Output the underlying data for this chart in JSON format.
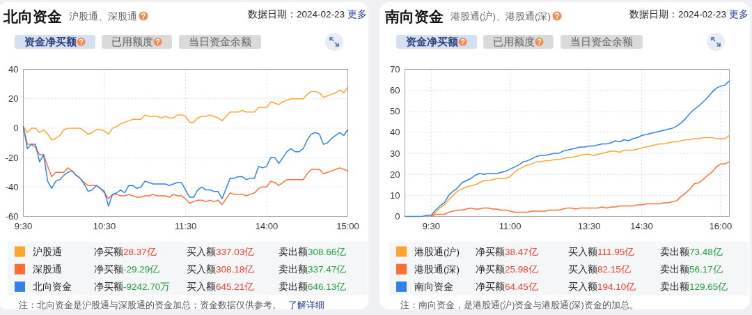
{
  "chart_data": [
    {
      "type": "line",
      "title": "北向资金",
      "subtitle": "沪股通、深股通",
      "annotations": [
        "数据日期：2024-02-23",
        "更多",
        "资金净买额",
        "已用额度",
        "当日资金余额",
        "净买额",
        "28.37亿",
        "买入额",
        "337.03亿",
        "卖出额",
        "308.66亿",
        "净买额",
        "-29.29亿",
        "买入额",
        "308.18亿",
        "卖出额",
        "337.47亿",
        "净买额",
        "-9242.70万",
        "买入额",
        "645.21亿",
        "卖出额",
        "646.13亿",
        "注：北向资金是沪股通与深股通的资金加总；资金数据仅供参考。",
        "了解详细"
      ],
      "categories": [
        "9:30",
        null,
        null,
        null,
        null,
        null,
        null,
        null,
        null,
        null,
        null,
        null,
        null,
        null,
        null,
        null,
        null,
        null,
        null,
        null,
        "10:30",
        null,
        null,
        null,
        null,
        null,
        null,
        null,
        null,
        null,
        null,
        null,
        null,
        null,
        null,
        null,
        null,
        null,
        null,
        null,
        "11:30",
        null,
        null,
        null,
        null,
        null,
        null,
        null,
        null,
        null,
        null,
        null,
        null,
        null,
        null,
        null,
        null,
        null,
        null,
        null,
        "14:00",
        null,
        null,
        null,
        null,
        null,
        null,
        null,
        null,
        null,
        null,
        null,
        null,
        null,
        null,
        null,
        null,
        null,
        null,
        null,
        "15:00"
      ],
      "ylim": [
        -60,
        40
      ],
      "yticks": [
        -60,
        -40,
        -20,
        0,
        20,
        40
      ],
      "grid": true,
      "legend": "bottom",
      "series": [
        {
          "name": "沪股通",
          "color": "#ffa52e",
          "values": [
            1,
            -3,
            0,
            0,
            -3,
            -1,
            -4,
            -8,
            -7,
            -5,
            -1,
            0,
            0,
            0,
            0,
            -2,
            -4,
            -3,
            -1,
            -1,
            -2,
            -4,
            0,
            1,
            3,
            4,
            5,
            6,
            6,
            6,
            9,
            8,
            8,
            8,
            7,
            8,
            7,
            7,
            9,
            9,
            8,
            4,
            4,
            7,
            8,
            8,
            9,
            8,
            7,
            5,
            8,
            11,
            11,
            11,
            12,
            11,
            11,
            11,
            14,
            14,
            14,
            18,
            17,
            16,
            18,
            19,
            20,
            20,
            20,
            20,
            23,
            25,
            25,
            24,
            21,
            22,
            23,
            24,
            26,
            24,
            28
          ]
        },
        {
          "name": "深股通",
          "color": "#ff6f33",
          "values": [
            1,
            -11,
            -11,
            -13,
            -18,
            -18,
            -26,
            -33,
            -30,
            -30,
            -30,
            -27,
            -29,
            -32,
            -34,
            -37,
            -39,
            -39,
            -39,
            -41,
            -44,
            -48,
            -45,
            -45,
            -46,
            -46,
            -45,
            -46,
            -47,
            -47,
            -46,
            -46,
            -45,
            -46,
            -46,
            -46,
            -47,
            -45,
            -46,
            -46,
            -48,
            -51,
            -50,
            -49,
            -49,
            -50,
            -49,
            -50,
            -49,
            -52,
            -48,
            -44,
            -45,
            -45,
            -45,
            -46,
            -45,
            -44,
            -41,
            -40,
            -40,
            -36,
            -37,
            -39,
            -37,
            -35,
            -35,
            -35,
            -35,
            -35,
            -31,
            -28,
            -28,
            -28,
            -31,
            -30,
            -29,
            -28,
            -27,
            -28,
            -29
          ]
        },
        {
          "name": "北向资金",
          "color": "#3380e6",
          "values": [
            1,
            -14,
            -11,
            -11,
            -23,
            -18,
            -36,
            -41,
            -36,
            -35,
            -32,
            -30,
            -29,
            -32,
            -34,
            -38,
            -43,
            -42,
            -39,
            -41,
            -43,
            -53,
            -45,
            -44,
            -42,
            -44,
            -39,
            -39,
            -41,
            -40,
            -36,
            -37,
            -38,
            -38,
            -38,
            -38,
            -39,
            -38,
            -37,
            -37,
            -42,
            -47,
            -47,
            -42,
            -40,
            -42,
            -42,
            -43,
            -43,
            -48,
            -41,
            -34,
            -34,
            -33,
            -33,
            -35,
            -34,
            -34,
            -26,
            -27,
            -26,
            -20,
            -20,
            -24,
            -20,
            -16,
            -14,
            -16,
            -16,
            -14,
            -8,
            -4,
            -3,
            -4,
            -11,
            -10,
            -7,
            -5,
            -3,
            -5,
            -1
          ]
        }
      ]
    },
    {
      "type": "line",
      "title": "南向资金",
      "subtitle": "港股通(沪)、港股通(深)",
      "annotations": [
        "数据日期：2024-02-23",
        "更多",
        "资金净买额",
        "已用额度",
        "当日资金余额",
        "净买额",
        "38.47亿",
        "买入额",
        "111.95亿",
        "卖出额",
        "73.48亿",
        "净买额",
        "25.98亿",
        "买入额",
        "82.15亿",
        "卖出额",
        "56.17亿",
        "净买额",
        "64.45亿",
        "买入额",
        "194.10亿",
        "卖出额",
        "129.65亿",
        "注：南向资金，是港股通(沪)资金与港股通(深)资金的加总。"
      ],
      "categories": [
        null,
        null,
        null,
        null,
        null,
        null,
        "9:30",
        null,
        null,
        null,
        null,
        null,
        null,
        null,
        null,
        null,
        null,
        null,
        null,
        null,
        null,
        null,
        null,
        null,
        "11:00",
        null,
        null,
        null,
        null,
        null,
        null,
        null,
        null,
        null,
        null,
        null,
        null,
        null,
        null,
        null,
        null,
        null,
        "13:30",
        null,
        null,
        null,
        null,
        null,
        null,
        null,
        null,
        null,
        null,
        null,
        "14:30",
        null,
        null,
        null,
        null,
        null,
        null,
        null,
        null,
        null,
        null,
        null,
        null,
        null,
        null,
        null,
        null,
        null,
        "16:00",
        null,
        null
      ],
      "ylim": [
        0,
        70
      ],
      "yticks": [
        0,
        10,
        20,
        30,
        40,
        50,
        60,
        70
      ],
      "grid": true,
      "legend": "bottom",
      "series": [
        {
          "name": "港股通(沪)",
          "color": "#ffa52e",
          "values": [
            null,
            null,
            null,
            null,
            null,
            null,
            0,
            2,
            4,
            5.5,
            8,
            10,
            12,
            13,
            14,
            14.5,
            15,
            16,
            17,
            17,
            17.5,
            18,
            18,
            18,
            19,
            21,
            22.5,
            23.5,
            24.5,
            25,
            26,
            26,
            26.5,
            26.5,
            27,
            27,
            27.5,
            28,
            28,
            28.5,
            29,
            29.5,
            29.5,
            29,
            29.5,
            30,
            30.5,
            31,
            31,
            30.5,
            31.5,
            31.5,
            31.5,
            32,
            32.5,
            33,
            33.5,
            34,
            34.5,
            34.5,
            35,
            35.5,
            35.5,
            36,
            36.5,
            36.5,
            37,
            37,
            37.5,
            37.5,
            37.5,
            37,
            37,
            37,
            38.5
          ]
        },
        {
          "name": "港股通(深)",
          "color": "#ff6f33",
          "values": [
            null,
            null,
            null,
            null,
            null,
            null,
            0,
            1,
            1,
            1,
            2,
            2.5,
            3,
            3,
            3.5,
            4,
            3.5,
            3.5,
            4,
            4,
            3.5,
            3.5,
            3,
            3,
            2.5,
            2,
            2,
            2,
            2,
            2.5,
            2.5,
            2.5,
            2.5,
            3,
            3,
            3,
            3.5,
            4,
            4,
            3.5,
            4,
            4,
            4,
            4,
            4,
            4.5,
            4,
            4.5,
            4.5,
            5,
            5,
            5,
            5,
            5.5,
            5.5,
            6,
            6,
            6,
            6,
            6.5,
            6.5,
            7,
            7.5,
            9.5,
            11,
            13,
            15.5,
            16,
            17.5,
            19.5,
            21,
            23.5,
            25,
            25,
            26
          ]
        },
        {
          "name": "南向资金",
          "color": "#3380e6",
          "values": [
            0,
            0,
            0,
            0,
            0,
            0.5,
            0.5,
            3,
            5,
            6.5,
            10,
            12,
            13.5,
            16,
            17,
            18,
            19.5,
            20.5,
            20,
            20.5,
            20.5,
            20.5,
            21,
            21.5,
            22.5,
            23.5,
            24.5,
            26,
            26.5,
            27.5,
            28.5,
            29,
            29,
            29.5,
            30,
            30,
            31,
            31.5,
            32,
            32.5,
            33,
            33,
            33.5,
            33.5,
            34,
            34.5,
            34.5,
            35,
            36,
            35.5,
            36.5,
            36,
            37,
            37.5,
            38.5,
            39,
            39.5,
            40,
            40.5,
            41,
            41.5,
            42,
            43,
            44.5,
            46.5,
            49,
            51,
            52.5,
            54.5,
            56.5,
            59,
            61,
            62,
            62.5,
            64.5
          ]
        }
      ]
    }
  ]
}
